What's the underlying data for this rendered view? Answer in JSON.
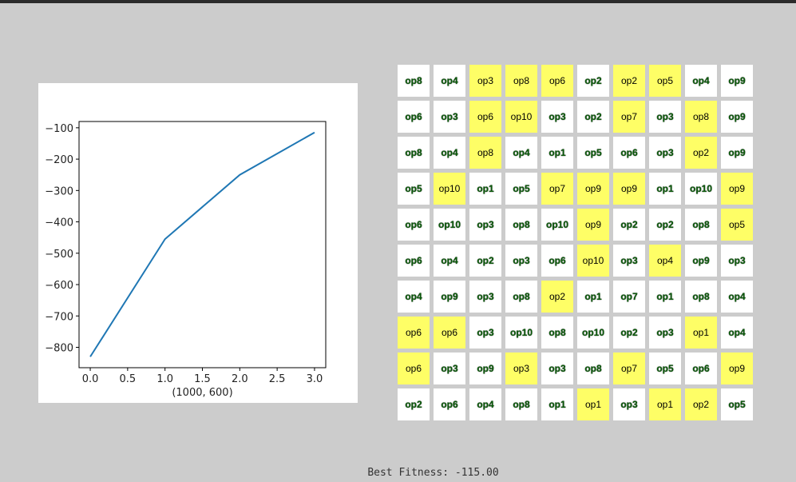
{
  "chart_data": {
    "type": "line",
    "x": [
      0,
      1,
      2,
      3
    ],
    "values": [
      -830,
      -455,
      -250,
      -115
    ],
    "xlim": [
      -0.15,
      3.15
    ],
    "ylim": [
      -865,
      -80
    ],
    "xticks": [
      0.0,
      0.5,
      1.0,
      1.5,
      2.0,
      2.5,
      3.0
    ],
    "xtick_labels": [
      "0.0",
      "0.5",
      "1.0",
      "1.5",
      "2.0",
      "2.5",
      "3.0"
    ],
    "yticks": [
      -100,
      -200,
      -300,
      -400,
      -500,
      -600,
      -700,
      -800
    ],
    "ytick_labels": [
      "−100",
      "−200",
      "−300",
      "−400",
      "−500",
      "−600",
      "−700",
      "−800"
    ],
    "xlabel": "(1000, 600)",
    "line_color": "#1f77b4"
  },
  "grid": {
    "rows": [
      [
        {
          "t": "op8",
          "h": false
        },
        {
          "t": "op4",
          "h": false
        },
        {
          "t": "op3",
          "h": true
        },
        {
          "t": "op8",
          "h": true
        },
        {
          "t": "op6",
          "h": true
        },
        {
          "t": "op2",
          "h": false
        },
        {
          "t": "op2",
          "h": true
        },
        {
          "t": "op5",
          "h": true
        },
        {
          "t": "op4",
          "h": false
        },
        {
          "t": "op9",
          "h": false
        }
      ],
      [
        {
          "t": "op6",
          "h": false
        },
        {
          "t": "op3",
          "h": false
        },
        {
          "t": "op6",
          "h": true
        },
        {
          "t": "op10",
          "h": true
        },
        {
          "t": "op3",
          "h": false
        },
        {
          "t": "op2",
          "h": false
        },
        {
          "t": "op7",
          "h": true
        },
        {
          "t": "op3",
          "h": false
        },
        {
          "t": "op8",
          "h": true
        },
        {
          "t": "op9",
          "h": false
        }
      ],
      [
        {
          "t": "op8",
          "h": false
        },
        {
          "t": "op4",
          "h": false
        },
        {
          "t": "op8",
          "h": true
        },
        {
          "t": "op4",
          "h": false
        },
        {
          "t": "op1",
          "h": false
        },
        {
          "t": "op5",
          "h": false
        },
        {
          "t": "op6",
          "h": false
        },
        {
          "t": "op3",
          "h": false
        },
        {
          "t": "op2",
          "h": true
        },
        {
          "t": "op9",
          "h": false
        }
      ],
      [
        {
          "t": "op5",
          "h": false
        },
        {
          "t": "op10",
          "h": true
        },
        {
          "t": "op1",
          "h": false
        },
        {
          "t": "op5",
          "h": false
        },
        {
          "t": "op7",
          "h": true
        },
        {
          "t": "op9",
          "h": true
        },
        {
          "t": "op9",
          "h": true
        },
        {
          "t": "op1",
          "h": false
        },
        {
          "t": "op10",
          "h": false
        },
        {
          "t": "op9",
          "h": true
        }
      ],
      [
        {
          "t": "op6",
          "h": false
        },
        {
          "t": "op10",
          "h": false
        },
        {
          "t": "op3",
          "h": false
        },
        {
          "t": "op8",
          "h": false
        },
        {
          "t": "op10",
          "h": false
        },
        {
          "t": "op9",
          "h": true
        },
        {
          "t": "op2",
          "h": false
        },
        {
          "t": "op2",
          "h": false
        },
        {
          "t": "op8",
          "h": false
        },
        {
          "t": "op5",
          "h": true
        }
      ],
      [
        {
          "t": "op6",
          "h": false
        },
        {
          "t": "op4",
          "h": false
        },
        {
          "t": "op2",
          "h": false
        },
        {
          "t": "op3",
          "h": false
        },
        {
          "t": "op6",
          "h": false
        },
        {
          "t": "op10",
          "h": true
        },
        {
          "t": "op3",
          "h": false
        },
        {
          "t": "op4",
          "h": true
        },
        {
          "t": "op9",
          "h": false
        },
        {
          "t": "op3",
          "h": false
        }
      ],
      [
        {
          "t": "op4",
          "h": false
        },
        {
          "t": "op9",
          "h": false
        },
        {
          "t": "op3",
          "h": false
        },
        {
          "t": "op8",
          "h": false
        },
        {
          "t": "op2",
          "h": true
        },
        {
          "t": "op1",
          "h": false
        },
        {
          "t": "op7",
          "h": false
        },
        {
          "t": "op1",
          "h": false
        },
        {
          "t": "op8",
          "h": false
        },
        {
          "t": "op4",
          "h": false
        }
      ],
      [
        {
          "t": "op6",
          "h": true
        },
        {
          "t": "op6",
          "h": true
        },
        {
          "t": "op3",
          "h": false
        },
        {
          "t": "op10",
          "h": false
        },
        {
          "t": "op8",
          "h": false
        },
        {
          "t": "op10",
          "h": false
        },
        {
          "t": "op2",
          "h": false
        },
        {
          "t": "op3",
          "h": false
        },
        {
          "t": "op1",
          "h": true
        },
        {
          "t": "op4",
          "h": false
        }
      ],
      [
        {
          "t": "op6",
          "h": true
        },
        {
          "t": "op3",
          "h": false
        },
        {
          "t": "op9",
          "h": false
        },
        {
          "t": "op3",
          "h": true
        },
        {
          "t": "op3",
          "h": false
        },
        {
          "t": "op8",
          "h": false
        },
        {
          "t": "op7",
          "h": true
        },
        {
          "t": "op5",
          "h": false
        },
        {
          "t": "op6",
          "h": false
        },
        {
          "t": "op9",
          "h": true
        }
      ],
      [
        {
          "t": "op2",
          "h": false
        },
        {
          "t": "op6",
          "h": false
        },
        {
          "t": "op4",
          "h": false
        },
        {
          "t": "op8",
          "h": false
        },
        {
          "t": "op1",
          "h": false
        },
        {
          "t": "op1",
          "h": true
        },
        {
          "t": "op3",
          "h": false
        },
        {
          "t": "op1",
          "h": true
        },
        {
          "t": "op2",
          "h": true
        },
        {
          "t": "op5",
          "h": false
        }
      ]
    ]
  },
  "status": {
    "fitness_text": "Best Fitness: -115.00"
  },
  "colors": {
    "highlight": "#fefe66",
    "cell": "#ffffff",
    "background": "#cccccc"
  }
}
